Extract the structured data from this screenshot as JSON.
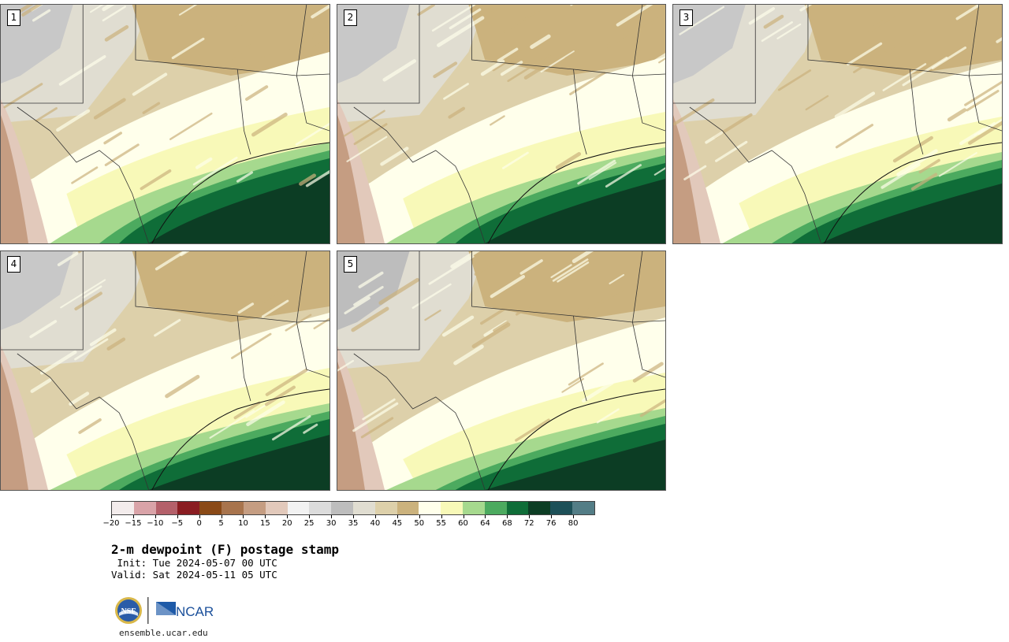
{
  "panels": [
    {
      "label": "1",
      "offset": 0
    },
    {
      "label": "2",
      "offset": 1
    },
    {
      "label": "3",
      "offset": 2
    },
    {
      "label": "4",
      "offset": 3
    },
    {
      "label": "5",
      "offset": 4
    }
  ],
  "colorbar": {
    "ticks": [
      "−20",
      "−15",
      "−10",
      "−5",
      "0",
      "5",
      "10",
      "15",
      "20",
      "25",
      "30",
      "35",
      "40",
      "45",
      "50",
      "55",
      "60",
      "64",
      "68",
      "72",
      "76",
      "80"
    ],
    "colors": [
      "#f3ecec",
      "#d9a3a8",
      "#b4606a",
      "#8a1d22",
      "#8a4a17",
      "#a8744d",
      "#c59d82",
      "#e2c9bb",
      "#f2f2f2",
      "#dcdcdc",
      "#bdbdbd",
      "#e0ddd1",
      "#ddd0aa",
      "#cbb27d",
      "#ffffeb",
      "#f8f9b8",
      "#a6d98e",
      "#4caa5f",
      "#0f6d38",
      "#0c3d24",
      "#1d5058",
      "#537d86"
    ]
  },
  "title": "2-m dewpoint (F) postage stamp",
  "init": " Init: Tue 2024-05-07 00 UTC",
  "valid": "Valid: Sat 2024-05-11 05 UTC",
  "logos": {
    "nsf_text": "NSF",
    "ncar_text": "NCAR"
  },
  "site": "ensemble.ucar.edu"
}
